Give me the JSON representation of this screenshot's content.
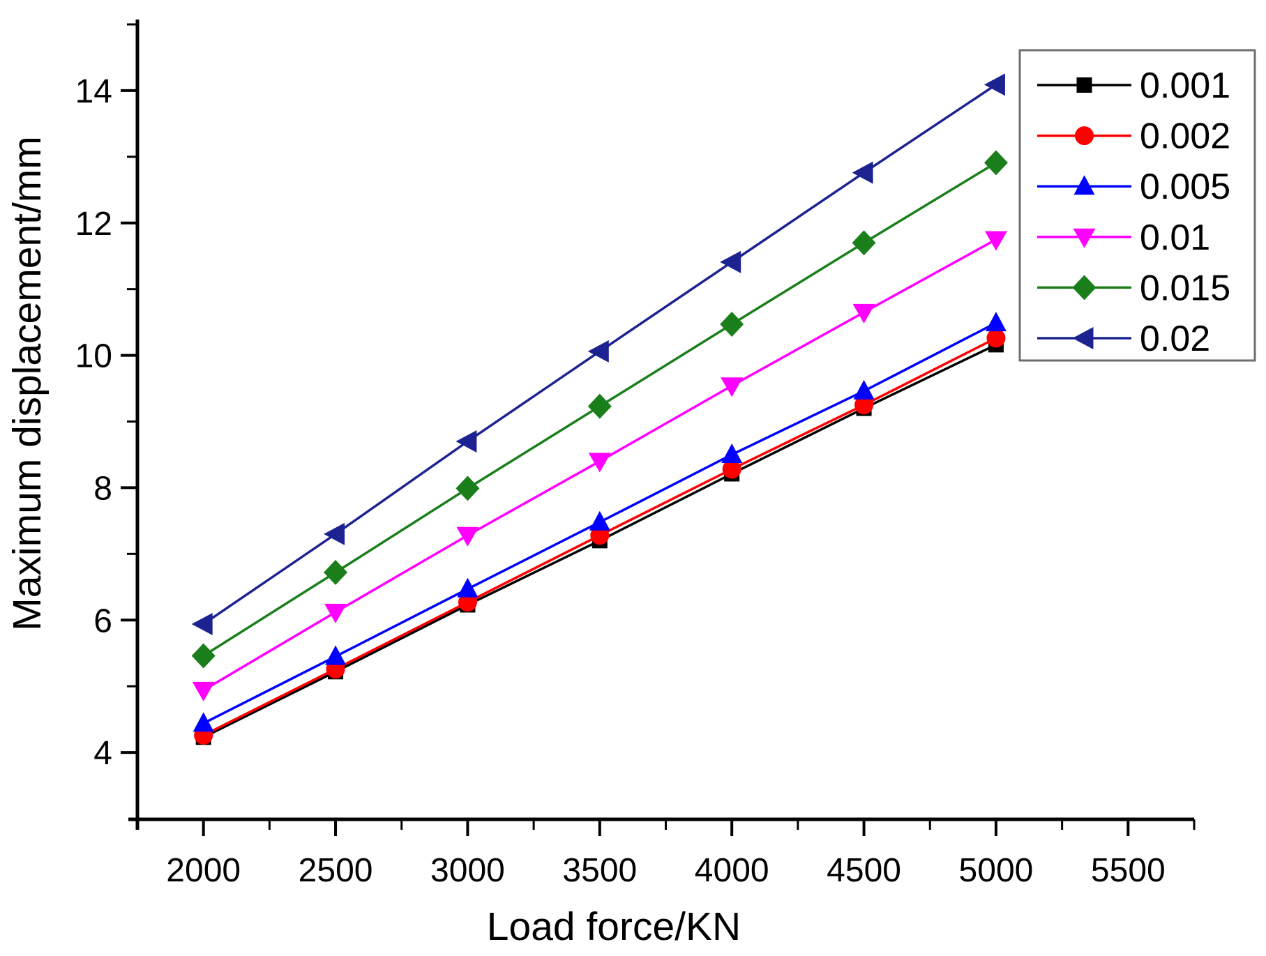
{
  "figure": {
    "background": "#ffffff",
    "axis_color": "#000000"
  },
  "chart_data": {
    "type": "line",
    "title": "",
    "xlabel": "Load force/KN",
    "ylabel": "Maximum displacement/mm",
    "grid": false,
    "legend_position": "top-right",
    "xlim": [
      1750,
      5750
    ],
    "ylim": [
      3,
      15
    ],
    "x_major_ticks": [
      2000,
      2500,
      3000,
      3500,
      4000,
      4500,
      5000,
      5500
    ],
    "x_minor_ticks": [
      2250,
      2750,
      3250,
      3750,
      4250,
      4750,
      5250,
      5750
    ],
    "y_major_ticks": [
      4,
      6,
      8,
      10,
      12,
      14
    ],
    "y_minor_ticks": [
      5,
      7,
      9,
      11,
      13,
      15
    ],
    "x": [
      2000,
      2500,
      3000,
      3500,
      4000,
      4500,
      5000
    ],
    "series": [
      {
        "name": "0.001",
        "color": "#000000",
        "marker": "square",
        "values": [
          4.23,
          5.22,
          6.23,
          7.2,
          8.21,
          9.2,
          10.16
        ]
      },
      {
        "name": "0.002",
        "color": "#ff0000",
        "marker": "circle",
        "values": [
          4.26,
          5.26,
          6.27,
          7.28,
          8.28,
          9.25,
          10.26
        ]
      },
      {
        "name": "0.005",
        "color": "#0000ff",
        "marker": "triangle-up",
        "values": [
          4.44,
          5.45,
          6.47,
          7.48,
          8.5,
          9.46,
          10.49
        ]
      },
      {
        "name": "0.01",
        "color": "#ff00ff",
        "marker": "triangle-down",
        "values": [
          4.94,
          6.12,
          7.28,
          8.4,
          9.54,
          10.65,
          11.75
        ]
      },
      {
        "name": "0.015",
        "color": "#1a7f1a",
        "marker": "diamond",
        "values": [
          5.46,
          6.72,
          7.99,
          9.23,
          10.47,
          11.7,
          12.91
        ]
      },
      {
        "name": "0.02",
        "color": "#1c2391",
        "marker": "triangle-left",
        "values": [
          5.94,
          7.3,
          8.7,
          10.06,
          11.41,
          12.76,
          14.09
        ]
      }
    ]
  }
}
